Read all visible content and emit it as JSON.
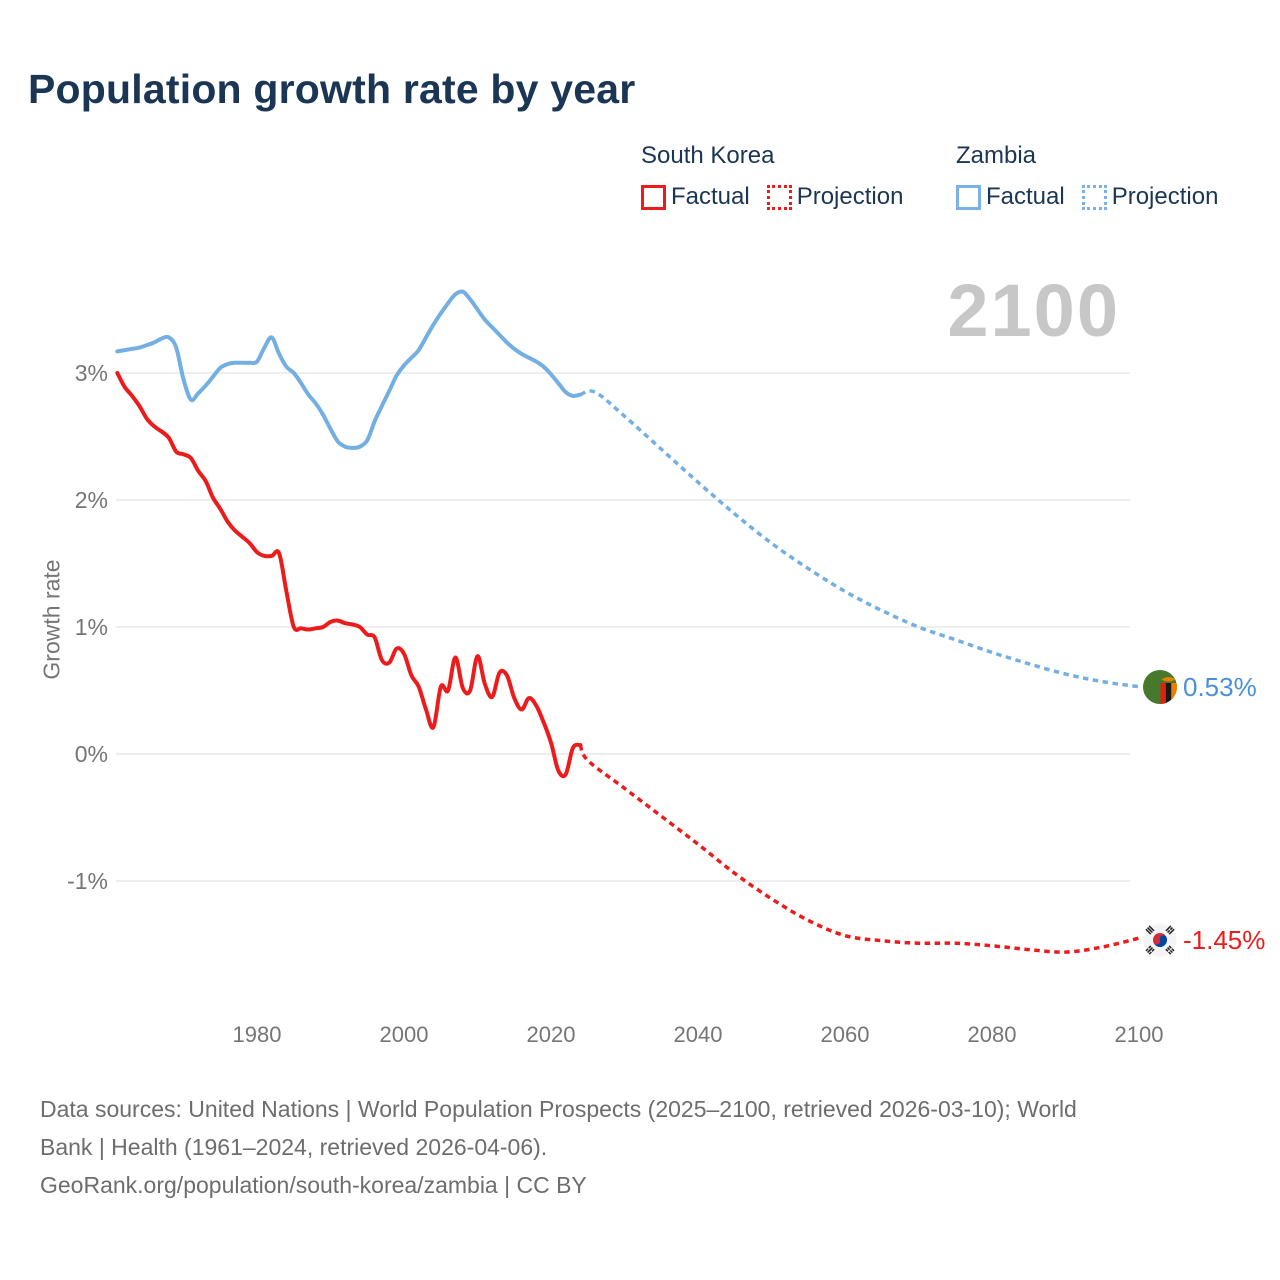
{
  "title": "Population growth rate by year",
  "watermark": "2100",
  "legend": {
    "south_korea": {
      "label": "South Korea",
      "factual": "Factual",
      "projection": "Projection"
    },
    "zambia": {
      "label": "Zambia",
      "factual": "Factual",
      "projection": "Projection"
    }
  },
  "y_axis": {
    "label": "Growth rate",
    "ticks": [
      "3%",
      "2%",
      "1%",
      "0%",
      "-1%"
    ]
  },
  "x_axis": {
    "ticks": [
      "1980",
      "2000",
      "2020",
      "2040",
      "2060",
      "2080",
      "2100"
    ]
  },
  "end_labels": {
    "zambia": {
      "value": "0.53%"
    },
    "south_korea": {
      "value": "-1.45%"
    }
  },
  "icons": {
    "zambia_flag": "zambia-flag-icon",
    "south_korea_flag": "south-korea-flag-icon"
  },
  "footer": {
    "lines": [
      "Data sources: United Nations | World Population Prospects (2025–2100, retrieved 2026-03-10); World",
      "Bank | Health (1961–2024, retrieved 2026-04-06).",
      "GeoRank.org/population/south-korea/zambia | CC BY"
    ]
  },
  "colors": {
    "south_korea": "#ed1c1c",
    "zambia_line": "#74afe3",
    "zambia_text": "#4a90d8",
    "grid": "#e8e8e8",
    "axis_text": "#757575",
    "title_text": "#1b3654",
    "watermark": "#c7c7c7"
  },
  "chart_data": {
    "type": "line",
    "title": "Population growth rate by year",
    "xlabel": "",
    "ylabel": "Growth rate",
    "x_range": [
      1961,
      2100
    ],
    "ylim": [
      -2.0,
      3.9
    ],
    "x_ticks": [
      1980,
      2000,
      2020,
      2040,
      2060,
      2080,
      2100
    ],
    "y_ticks_percent": [
      3,
      2,
      1,
      0,
      -1
    ],
    "grid": "horizontal-only",
    "legend_position": "top-right",
    "series": [
      {
        "name": "South Korea — Factual",
        "dom_name": "south-korea-factual-line",
        "style": "solid",
        "color": "#ed1c1c",
        "x_start": 1961,
        "x_step": 1,
        "y": [
          3.0,
          2.89,
          2.82,
          2.74,
          2.64,
          2.58,
          2.54,
          2.49,
          2.38,
          2.36,
          2.33,
          2.23,
          2.15,
          2.02,
          1.93,
          1.83,
          1.76,
          1.71,
          1.66,
          1.59,
          1.56,
          1.56,
          1.58,
          1.28,
          1.0,
          0.99,
          0.98,
          0.99,
          1.0,
          1.04,
          1.05,
          1.03,
          1.02,
          1.0,
          0.94,
          0.92,
          0.74,
          0.72,
          0.83,
          0.79,
          0.62,
          0.53,
          0.35,
          0.21,
          0.53,
          0.5,
          0.76,
          0.52,
          0.5,
          0.77,
          0.55,
          0.45,
          0.64,
          0.62,
          0.44,
          0.35,
          0.44,
          0.38,
          0.25,
          0.09,
          -0.13,
          -0.16,
          0.05,
          0.07
        ]
      },
      {
        "name": "South Korea — Projection",
        "dom_name": "south-korea-projection-line",
        "style": "dashed",
        "color": "#ed1c1c",
        "x": [
          2024,
          2025,
          2030,
          2035,
          2040,
          2045,
          2050,
          2055,
          2060,
          2065,
          2070,
          2075,
          2080,
          2085,
          2090,
          2095,
          2100
        ],
        "y": [
          0.07,
          -0.05,
          -0.27,
          -0.49,
          -0.71,
          -0.94,
          -1.14,
          -1.31,
          -1.43,
          -1.47,
          -1.49,
          -1.49,
          -1.51,
          -1.54,
          -1.56,
          -1.52,
          -1.45
        ]
      },
      {
        "name": "Zambia — Factual",
        "dom_name": "zambia-factual-line",
        "style": "solid",
        "color": "#74afe3",
        "x_start": 1961,
        "x_step": 1,
        "y": [
          3.17,
          3.18,
          3.19,
          3.2,
          3.22,
          3.24,
          3.27,
          3.28,
          3.2,
          2.95,
          2.79,
          2.84,
          2.9,
          2.97,
          3.04,
          3.07,
          3.08,
          3.08,
          3.08,
          3.09,
          3.2,
          3.28,
          3.15,
          3.05,
          3.0,
          2.92,
          2.83,
          2.76,
          2.67,
          2.56,
          2.46,
          2.42,
          2.41,
          2.42,
          2.47,
          2.62,
          2.74,
          2.86,
          2.98,
          3.06,
          3.12,
          3.18,
          3.28,
          3.38,
          3.47,
          3.55,
          3.62,
          3.64,
          3.58,
          3.5,
          3.42,
          3.36,
          3.3,
          3.24,
          3.19,
          3.15,
          3.12,
          3.09,
          3.05,
          2.99,
          2.92,
          2.85,
          2.82,
          2.83
        ]
      },
      {
        "name": "Zambia — Projection",
        "dom_name": "zambia-projection-line",
        "style": "dashed",
        "color": "#74afe3",
        "x": [
          2024,
          2026,
          2030,
          2035,
          2040,
          2045,
          2050,
          2055,
          2060,
          2065,
          2070,
          2075,
          2080,
          2085,
          2090,
          2095,
          2100
        ],
        "y": [
          2.83,
          2.85,
          2.66,
          2.4,
          2.14,
          1.89,
          1.66,
          1.46,
          1.28,
          1.13,
          1.0,
          0.9,
          0.8,
          0.71,
          0.63,
          0.57,
          0.53
        ]
      }
    ],
    "end_annotations": [
      {
        "series": "Zambia",
        "year": 2100,
        "value_percent": 0.53,
        "label": "0.53%"
      },
      {
        "series": "South Korea",
        "year": 2100,
        "value_percent": -1.45,
        "label": "-1.45%"
      }
    ]
  }
}
